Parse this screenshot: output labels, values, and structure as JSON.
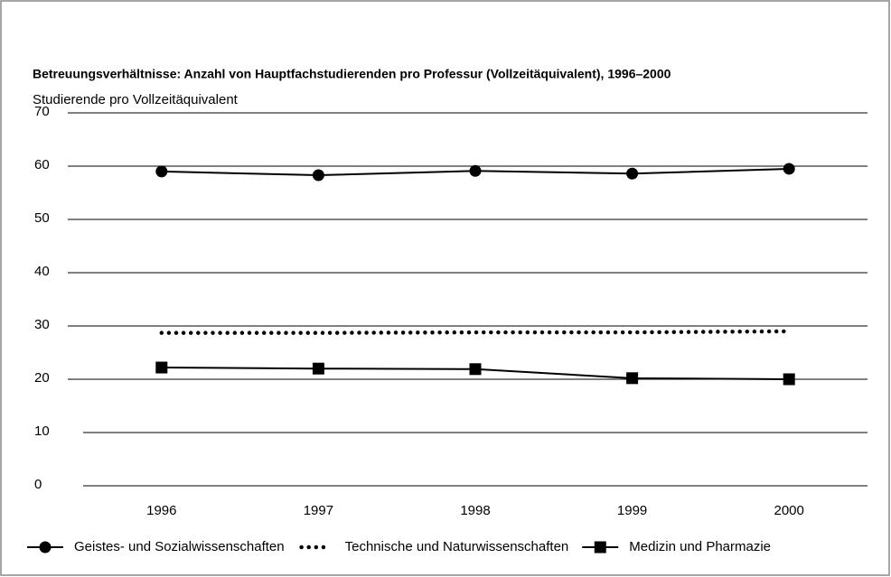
{
  "chart_data": {
    "type": "line",
    "title": "Betreuungsverhältnisse: Anzahl von Hauptfachstudierenden pro Professur (Vollzeitäquivalent), 1996–2000",
    "y_label": "Studierende pro Vollzeitäquivalent",
    "categories": [
      "1996",
      "1997",
      "1998",
      "1999",
      "2000"
    ],
    "series": [
      {
        "name": "Geistes- und Sozialwissenschaften",
        "color": "#000000",
        "marker": "circle",
        "values": [
          59.0,
          58.3,
          59.1,
          58.6,
          59.5
        ]
      },
      {
        "name": "Technische und Naturwissenschaften",
        "color": "#000000",
        "marker": "dotted",
        "values": [
          28.7,
          28.7,
          28.8,
          28.8,
          29.0
        ]
      },
      {
        "name": "Medizin und Pharmazie",
        "color": "#000000",
        "marker": "square",
        "values": [
          22.2,
          22.0,
          21.9,
          20.2,
          20.0
        ]
      }
    ],
    "ylim": [
      0,
      70
    ],
    "yticks": [
      0,
      10,
      20,
      30,
      40,
      50,
      60,
      70
    ],
    "grid": true,
    "legend": "bottom"
  }
}
